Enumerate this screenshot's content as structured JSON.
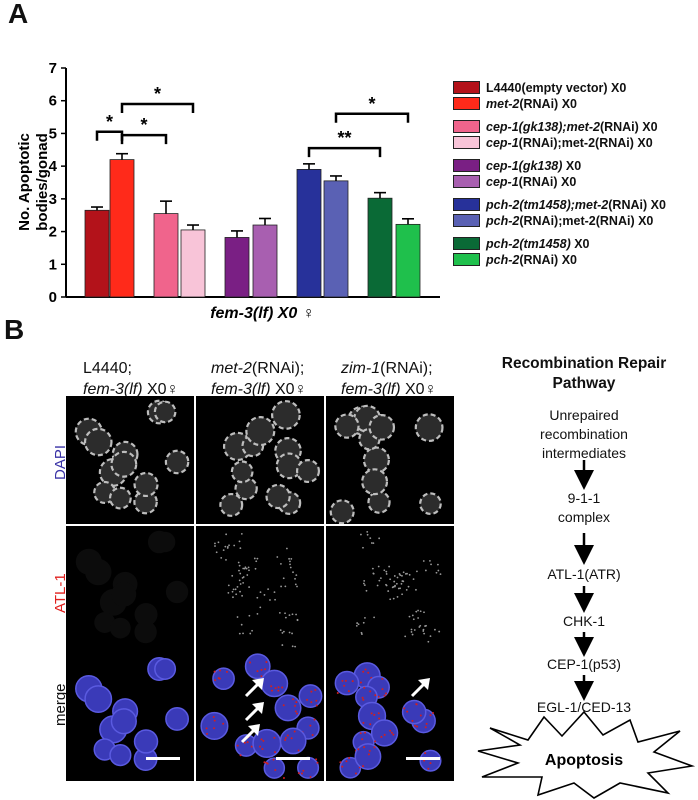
{
  "panel_a": {
    "letter": "A",
    "chart_data": {
      "type": "bar",
      "ylabel_line1": "No. Apoptotic",
      "ylabel_line2": "bodies/gonad",
      "xlabel": "fem-3(lf) X0 ♀",
      "ylim": [
        0,
        7
      ],
      "yticks": [
        "0",
        "1",
        "2",
        "3",
        "4",
        "5",
        "6",
        "7"
      ],
      "bars": [
        {
          "label": "L4440(empty vector) X0",
          "value": 2.65,
          "error": 0.1,
          "color": "#b3121a"
        },
        {
          "label": "met-2(RNAi) X0",
          "value": 4.2,
          "error": 0.18,
          "color": "#ff2a1a"
        },
        {
          "label": "cep-1(gk138);met-2(RNAi) X0",
          "value": 2.55,
          "error": 0.38,
          "color": "#f0648c"
        },
        {
          "label": "cep-1(RNAi);met-2(RNAi) X0",
          "value": 2.05,
          "error": 0.15,
          "color": "#f8c4d8"
        },
        {
          "label": "cep-1(gk138) X0",
          "value": 1.82,
          "error": 0.2,
          "color": "#7a1f84"
        },
        {
          "label": "cep-1(RNAi) X0",
          "value": 2.2,
          "error": 0.2,
          "color": "#a85fb0"
        },
        {
          "label": "pch-2(tm1458);met-2(RNAi) X0",
          "value": 3.9,
          "error": 0.17,
          "color": "#27319a"
        },
        {
          "label": "pch-2(RNAi);met-2(RNAi) X0",
          "value": 3.55,
          "error": 0.15,
          "color": "#5a61b4"
        },
        {
          "label": "pch-2(tm1458) X0",
          "value": 3.02,
          "error": 0.17,
          "color": "#0a6a36"
        },
        {
          "label": "pch-2(RNAi) X0",
          "value": 2.22,
          "error": 0.17,
          "color": "#1fc04c"
        }
      ],
      "significance": [
        {
          "from": 0,
          "to": 1,
          "label": "*",
          "level": 5.05
        },
        {
          "from": 1,
          "to": 3,
          "label": "*",
          "level": 5.9
        },
        {
          "from": 1,
          "to": 2,
          "label": "*",
          "level": 4.95
        },
        {
          "from": 6,
          "to": 8,
          "label": "**",
          "level": 4.55
        },
        {
          "from": 7,
          "to": 9,
          "label": "*",
          "level": 5.6
        }
      ]
    },
    "legend": [
      {
        "pre": "L4440(empty vector) X0",
        "rest": "",
        "color": "#b3121a"
      },
      {
        "pre": "met-2",
        "rest": "(RNAi) X0",
        "color": "#ff2a1a"
      },
      {
        "pre": "cep-1(gk138);met-2",
        "rest": "(RNAi) X0",
        "color": "#f0648c"
      },
      {
        "pre": "cep-1",
        "rest": "(RNAi);met-2(RNAi) X0",
        "color": "#f8c4d8"
      },
      {
        "pre": "cep-1(gk138)",
        "rest": " X0",
        "color": "#7a1f84"
      },
      {
        "pre": "cep-1",
        "rest": "(RNAi) X0",
        "color": "#a85fb0"
      },
      {
        "pre": "pch-2(tm1458);met-2",
        "rest": "(RNAi) X0",
        "color": "#27319a"
      },
      {
        "pre": "pch-2",
        "rest": "(RNAi);met-2(RNAi) X0",
        "color": "#5a61b4"
      },
      {
        "pre": "pch-2(tm1458)",
        "rest": " X0",
        "color": "#0a6a36"
      },
      {
        "pre": "pch-2",
        "rest": "(RNAi) X0",
        "color": "#1fc04c"
      }
    ]
  },
  "panel_b": {
    "letter": "B",
    "columns": [
      {
        "line1_a": "L4440;",
        "line1_b": "",
        "line2_it": "fem-3(lf)",
        "line2_rest": " X0♀"
      },
      {
        "line1_a": "met-2",
        "line1_b": "(RNAi);",
        "line2_it": "fem-3(lf)",
        "line2_rest": " X0♀"
      },
      {
        "line1_a": "zim-1",
        "line1_b": "(RNAi);",
        "line2_it": "fem-3(lf)",
        "line2_rest": " X0♀"
      }
    ],
    "rows": [
      {
        "label": "DAPI",
        "color": "#3a33a6"
      },
      {
        "label": "ATL-1",
        "color": "#e0201e"
      },
      {
        "label": "merge",
        "color": "#111111"
      }
    ],
    "pathway": {
      "title_line1": "Recombination Repair",
      "title_line2": "Pathway",
      "steps": [
        "Unrepaired",
        "recombination",
        "intermediates",
        "9-1-1",
        "complex",
        "ATL-1(ATR)",
        "CHK-1",
        "CEP-1(p53)",
        "EGL-1/CED-13",
        "Apoptosis"
      ]
    }
  }
}
